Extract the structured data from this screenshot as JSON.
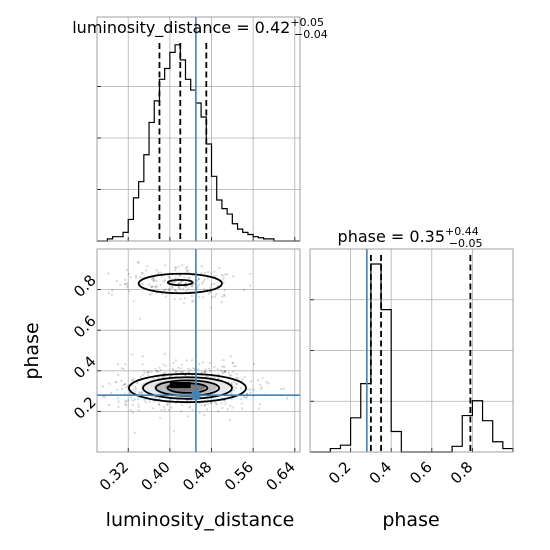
{
  "chart_data": {
    "type": "corner",
    "parameters": [
      "luminosity_distance",
      "phase"
    ],
    "axis_labels": {
      "x_bottom_left": "luminosity_distance",
      "x_bottom_right": "phase",
      "y_left": "phase"
    },
    "truth": {
      "luminosity_distance": 0.45,
      "phase": 0.28,
      "color": "#4682b4"
    },
    "panels": {
      "ld_hist": {
        "title": {
          "prefix": "luminosity_distance = 0.42",
          "sup": "+0.05",
          "sub": "−0.04"
        },
        "xlim": [
          0.26,
          0.65
        ],
        "bin_edges": [
          0.26,
          0.27,
          0.28,
          0.29,
          0.3,
          0.31,
          0.32,
          0.33,
          0.34,
          0.35,
          0.36,
          0.37,
          0.38,
          0.39,
          0.4,
          0.41,
          0.42,
          0.43,
          0.44,
          0.45,
          0.46,
          0.47,
          0.48,
          0.49,
          0.5,
          0.51,
          0.52,
          0.53,
          0.54,
          0.55,
          0.56,
          0.57,
          0.58,
          0.59,
          0.6,
          0.61,
          0.62,
          0.63,
          0.64,
          0.65
        ],
        "counts": [
          0,
          0,
          2,
          4,
          4,
          8,
          20,
          40,
          55,
          80,
          110,
          130,
          150,
          160,
          175,
          182,
          168,
          150,
          140,
          128,
          115,
          90,
          60,
          38,
          30,
          25,
          16,
          11,
          8,
          6,
          4,
          3,
          2,
          2,
          0,
          0,
          0,
          0,
          0
        ],
        "quantiles": [
          0.38,
          0.42,
          0.47
        ]
      },
      "phase_hist": {
        "title": {
          "prefix": "phase = 0.35",
          "sup": "+0.44",
          "sub": "−0.05"
        },
        "xlim": [
          0.0,
          1.0
        ],
        "bin_edges": [
          0.0,
          0.05,
          0.1,
          0.15,
          0.2,
          0.25,
          0.3,
          0.35,
          0.4,
          0.45,
          0.5,
          0.55,
          0.6,
          0.65,
          0.7,
          0.75,
          0.8,
          0.85,
          0.9,
          0.95,
          1.0
        ],
        "counts": [
          0,
          0,
          6,
          12,
          60,
          120,
          330,
          250,
          36,
          0,
          0,
          0,
          0,
          0,
          10,
          64,
          90,
          55,
          18,
          6
        ],
        "quantiles": [
          0.3,
          0.35,
          0.79
        ]
      },
      "joint": {
        "xlim": [
          0.26,
          0.65
        ],
        "ylim": [
          0.0,
          1.0
        ],
        "modes": [
          {
            "x": 0.43,
            "y": 0.32,
            "sx": 0.045,
            "sy": 0.045,
            "weight": 0.78
          },
          {
            "x": 0.42,
            "y": 0.83,
            "sx": 0.04,
            "sy": 0.04,
            "weight": 0.22
          }
        ],
        "high_density": {
          "x": [
            0.4,
            0.44
          ],
          "y": [
            0.315,
            0.345
          ]
        }
      }
    },
    "ticks": {
      "luminosity_distance": [
        "0.32",
        "0.40",
        "0.48",
        "0.56",
        "0.64"
      ],
      "phase_x": [
        "0.2",
        "0.4",
        "0.6",
        "0.8"
      ],
      "phase_y": [
        "0.2",
        "0.4",
        "0.6",
        "0.8"
      ]
    },
    "tick_values": {
      "luminosity_distance": [
        0.32,
        0.4,
        0.48,
        0.56,
        0.64
      ],
      "phase_x": [
        0.2,
        0.4,
        0.6,
        0.8
      ],
      "phase_y": [
        0.2,
        0.4,
        0.6,
        0.8
      ]
    },
    "grid": true
  }
}
